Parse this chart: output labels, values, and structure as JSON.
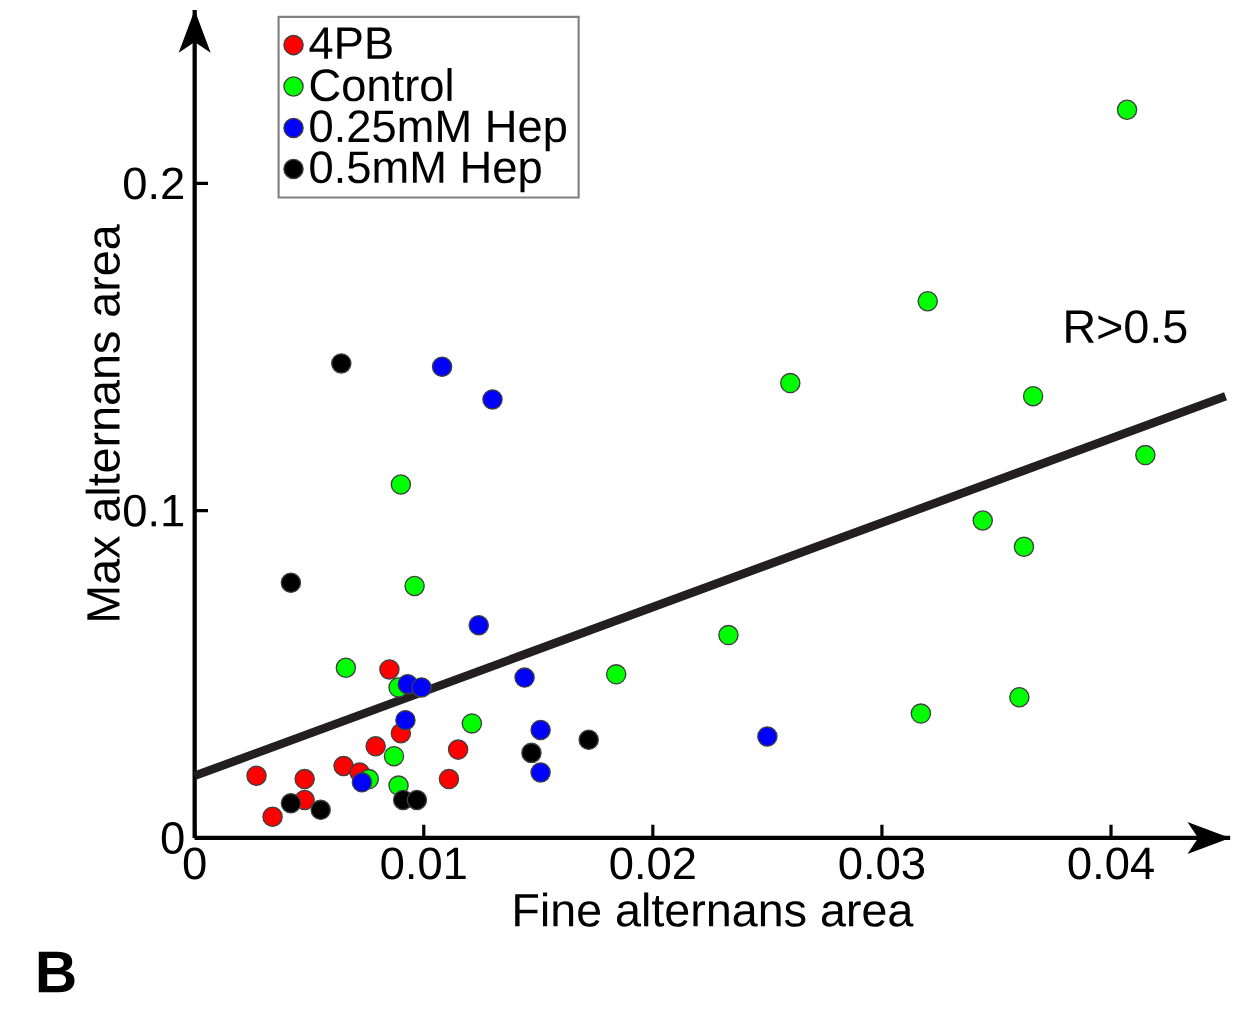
{
  "chart_data": {
    "type": "scatter",
    "xlabel": "Fine alternans area",
    "ylabel": "Max alternans area",
    "xlim": [
      0,
      0.0452
    ],
    "ylim": [
      0,
      0.253
    ],
    "xticks": [
      0,
      0.01,
      0.02,
      0.03,
      0.04
    ],
    "yticks": [
      0,
      0.1,
      0.2
    ],
    "legend": "top left",
    "grid": false,
    "annotations": [
      "B",
      "R>0.5"
    ],
    "series": [
      {
        "name": "4PB",
        "marker": "circle",
        "color": "#ff0000",
        "x": [
          0.0085,
          0.009,
          0.0079,
          0.0115,
          0.0065,
          0.0072,
          0.0027,
          0.0048,
          0.0111,
          0.0048,
          0.0034
        ],
        "values": [
          0.0515,
          0.032,
          0.028,
          0.027,
          0.022,
          0.02,
          0.019,
          0.018,
          0.018,
          0.0116,
          0.0065
        ]
      },
      {
        "name": "Control",
        "marker": "circle",
        "color": "#00ff00",
        "x": [
          0.009,
          0.0096,
          0.0066,
          0.0089,
          0.0121,
          0.0184,
          0.0087,
          0.0076,
          0.0089,
          0.0407,
          0.032,
          0.026,
          0.0366,
          0.0415,
          0.0344,
          0.0362,
          0.0233,
          0.0317,
          0.036
        ],
        "values": [
          0.108,
          0.077,
          0.052,
          0.046,
          0.035,
          0.05,
          0.025,
          0.018,
          0.016,
          0.2225,
          0.164,
          0.139,
          0.135,
          0.117,
          0.097,
          0.089,
          0.062,
          0.038,
          0.043
        ]
      },
      {
        "name": "0.25mM Hep",
        "marker": "circle",
        "color": "#0000ff",
        "x": [
          0.0108,
          0.013,
          0.0124,
          0.0093,
          0.0099,
          0.0144,
          0.0092,
          0.0151,
          0.0151,
          0.0073,
          0.025
        ],
        "values": [
          0.144,
          0.134,
          0.065,
          0.047,
          0.046,
          0.049,
          0.036,
          0.033,
          0.02,
          0.017,
          0.031
        ]
      },
      {
        "name": "0.5mM Hep",
        "marker": "circle",
        "color": "#000000",
        "x": [
          0.0064,
          0.0042,
          0.0042,
          0.0055,
          0.0091,
          0.0097,
          0.0147,
          0.0172
        ],
        "values": [
          0.145,
          0.078,
          0.0106,
          0.0086,
          0.0116,
          0.0116,
          0.026,
          0.03
        ]
      },
      {
        "type": "line",
        "marker": "none",
        "color": "#231f20",
        "x": [
          0,
          0.045
        ],
        "values": [
          0.019,
          0.135
        ]
      }
    ]
  }
}
